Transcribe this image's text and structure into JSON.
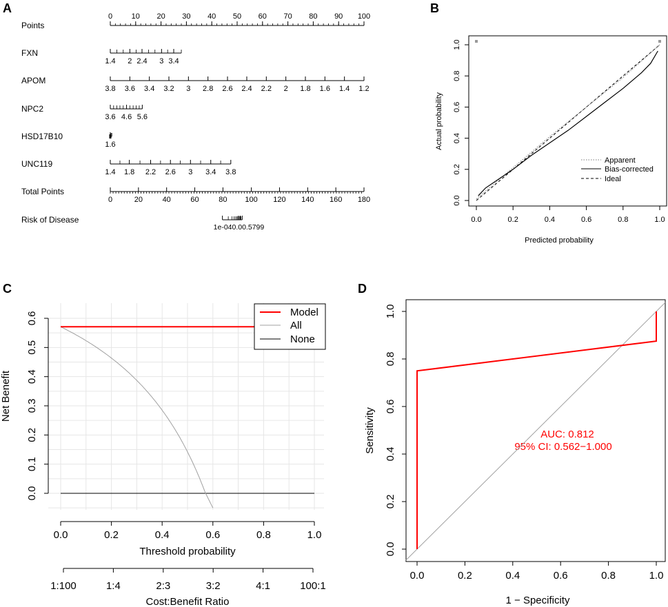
{
  "colors": {
    "model": "#ff0000",
    "all": "#a0a0a0",
    "none": "#000000",
    "roc": "#ff0000",
    "diag": "#a0a0a0",
    "grid": "#e6e6e6"
  },
  "chart_data": [
    {
      "panel": "A",
      "type": "nomogram",
      "rows": [
        {
          "label": "Points",
          "ticks": [
            {
              "v": 0,
              "t": "0"
            },
            {
              "v": 10,
              "t": "10"
            },
            {
              "v": 20,
              "t": "20"
            },
            {
              "v": 30,
              "t": "30"
            },
            {
              "v": 40,
              "t": "40"
            },
            {
              "v": 50,
              "t": "50"
            },
            {
              "v": 60,
              "t": "60"
            },
            {
              "v": 70,
              "t": "70"
            },
            {
              "v": 80,
              "t": "80"
            },
            {
              "v": 90,
              "t": "90"
            },
            {
              "v": 100,
              "t": "100"
            }
          ],
          "minor_step": 2,
          "labels_above": true
        },
        {
          "label": "FXN",
          "ticks": [
            {
              "v": 0,
              "t": "1.4"
            },
            {
              "v": 7.7,
              "t": "2"
            },
            {
              "v": 12.5,
              "t": "2.4"
            },
            {
              "v": 20.2,
              "t": "3"
            },
            {
              "v": 25,
              "t": "3.4"
            }
          ],
          "minor": [
            2.6,
            5.1,
            10.2,
            15.1,
            17.6,
            22.6,
            28
          ]
        },
        {
          "label": "APOM",
          "ticks": [
            {
              "v": 0,
              "t": "3.8"
            },
            {
              "v": 7.7,
              "t": "3.6"
            },
            {
              "v": 15.4,
              "t": "3.4"
            },
            {
              "v": 23.1,
              "t": "3.2"
            },
            {
              "v": 30.8,
              "t": "3"
            },
            {
              "v": 38.5,
              "t": "2.8"
            },
            {
              "v": 46.2,
              "t": "2.6"
            },
            {
              "v": 53.8,
              "t": "2.4"
            },
            {
              "v": 61.5,
              "t": "2.2"
            },
            {
              "v": 69.2,
              "t": "2"
            },
            {
              "v": 76.9,
              "t": "1.8"
            },
            {
              "v": 84.6,
              "t": "1.6"
            },
            {
              "v": 92.3,
              "t": "1.4"
            },
            {
              "v": 100,
              "t": "1.2"
            }
          ],
          "minor": []
        },
        {
          "label": "NPC2",
          "ticks": [
            {
              "v": 0,
              "t": "3.6"
            },
            {
              "v": 6.4,
              "t": "4.6"
            },
            {
              "v": 12.6,
              "t": "5.6"
            }
          ],
          "minor": [
            1.3,
            2.6,
            3.8,
            5.1,
            7.7,
            9,
            10.2,
            11.4
          ]
        },
        {
          "label": "HSD17B10",
          "ticks": [
            {
              "v": 0,
              "t": "1.6"
            }
          ],
          "minor": [
            0.3,
            0.6
          ],
          "dot": true
        },
        {
          "label": "UNC119",
          "ticks": [
            {
              "v": 0,
              "t": "1.4"
            },
            {
              "v": 7.5,
              "t": "1.8"
            },
            {
              "v": 15.9,
              "t": "2.2"
            },
            {
              "v": 23.7,
              "t": "2.6"
            },
            {
              "v": 31.6,
              "t": "3"
            },
            {
              "v": 39.6,
              "t": "3.4"
            },
            {
              "v": 47.5,
              "t": "3.8"
            }
          ],
          "minor": [
            3.8,
            11.7,
            19.8,
            27.6,
            35.6,
            43.5
          ]
        },
        {
          "label": "Total Points",
          "ticks": [
            {
              "v": 0,
              "t": "0"
            },
            {
              "v": 11.1,
              "t": "20"
            },
            {
              "v": 22.2,
              "t": "40"
            },
            {
              "v": 33.3,
              "t": "60"
            },
            {
              "v": 44.4,
              "t": "80"
            },
            {
              "v": 55.6,
              "t": "100"
            },
            {
              "v": 66.7,
              "t": "120"
            },
            {
              "v": 77.8,
              "t": "140"
            },
            {
              "v": 88.9,
              "t": "160"
            },
            {
              "v": 100,
              "t": "180"
            }
          ],
          "minor_step": 1.1
        },
        {
          "label": "Risk of Disease",
          "ticks": [
            {
              "v": 44.2,
              "t": "1e-04"
            },
            {
              "v": 50.5,
              "t": "0.5"
            },
            {
              "v": 51.2,
              "t": "0.7"
            },
            {
              "v": 52,
              "t": "0.99"
            }
          ],
          "minor": [
            46.5,
            48.0,
            48.8,
            49.4,
            49.9,
            50.3,
            50.9,
            51.5
          ],
          "tick_text": "1e-040.00.5799"
        }
      ]
    },
    {
      "panel": "B",
      "type": "line",
      "xlabel": "Predicted probability",
      "ylabel": "Actual probability",
      "xlim": [
        0,
        1
      ],
      "ylim": [
        0,
        1
      ],
      "x_ticks": [
        0.0,
        0.2,
        0.4,
        0.6,
        0.8,
        1.0
      ],
      "y_ticks": [
        0.0,
        0.2,
        0.4,
        0.6,
        0.8,
        1.0
      ],
      "tick_labels": [
        "0.0",
        "0.2",
        "0.4",
        "0.6",
        "0.8",
        "1.0"
      ],
      "series": [
        {
          "name": "Apparent",
          "x": [
            0,
            0.2,
            0.4,
            0.6,
            0.8,
            1.0
          ],
          "y": [
            0.01,
            0.21,
            0.41,
            0.6,
            0.79,
            1.0
          ]
        },
        {
          "name": "Bias-corrected",
          "x": [
            0.01,
            0.05,
            0.1,
            0.2,
            0.3,
            0.4,
            0.5,
            0.6,
            0.7,
            0.8,
            0.9,
            0.95,
            0.99
          ],
          "y": [
            0.03,
            0.08,
            0.12,
            0.2,
            0.29,
            0.37,
            0.45,
            0.54,
            0.63,
            0.72,
            0.82,
            0.88,
            0.96
          ]
        },
        {
          "name": "Ideal",
          "x": [
            0,
            1
          ],
          "y": [
            0,
            1
          ]
        }
      ],
      "legend": [
        "Apparent",
        "Bias-corrected",
        "Ideal"
      ],
      "legend_position": "bottom-right"
    },
    {
      "panel": "C",
      "type": "line",
      "xlabel": "Threshold probability",
      "ylabel": "Net Benefit",
      "xlim": [
        0,
        1
      ],
      "ylim": [
        -0.05,
        0.62
      ],
      "x_ticks": [
        0.0,
        0.2,
        0.4,
        0.6,
        0.8,
        1.0
      ],
      "y_ticks": [
        0.0,
        0.1,
        0.2,
        0.3,
        0.4,
        0.5,
        0.6
      ],
      "x_tick_labels": [
        "0.0",
        "0.2",
        "0.4",
        "0.6",
        "0.8",
        "1.0"
      ],
      "y_tick_labels": [
        "0.0",
        "0.1",
        "0.2",
        "0.3",
        "0.4",
        "0.5",
        "0.6"
      ],
      "cost_benefit_label": "Cost:Benefit Ratio",
      "cost_benefit_ticks": [
        "1:100",
        "1:4",
        "2:3",
        "3:2",
        "4:1",
        "100:1"
      ],
      "series": [
        {
          "name": "Model",
          "x": [
            0,
            1
          ],
          "y": [
            0.571,
            0.571
          ]
        },
        {
          "name": "All",
          "prevalence": 0.571,
          "x_range": [
            0,
            0.6
          ]
        },
        {
          "name": "None",
          "x": [
            0,
            1
          ],
          "y": [
            0,
            0
          ]
        }
      ],
      "legend": [
        "Model",
        "All",
        "None"
      ],
      "legend_position": "top-right"
    },
    {
      "panel": "D",
      "type": "line",
      "xlabel": "1 − Specificity",
      "ylabel": "Sensitivity",
      "xlim": [
        0,
        1
      ],
      "ylim": [
        0,
        1
      ],
      "x_ticks": [
        0.0,
        0.2,
        0.4,
        0.6,
        0.8,
        1.0
      ],
      "y_ticks": [
        0.0,
        0.2,
        0.4,
        0.6,
        0.8,
        1.0
      ],
      "tick_labels": [
        "0.0",
        "0.2",
        "0.4",
        "0.6",
        "0.8",
        "1.0"
      ],
      "series": [
        {
          "name": "ROC",
          "x": [
            0,
            0,
            1,
            1
          ],
          "y": [
            0,
            0.75,
            0.875,
            1
          ]
        },
        {
          "name": "Reference",
          "x": [
            0,
            1
          ],
          "y": [
            0,
            1
          ]
        }
      ],
      "annotations": [
        "AUC: 0.812",
        "95% CI: 0.562−1.000"
      ]
    }
  ]
}
